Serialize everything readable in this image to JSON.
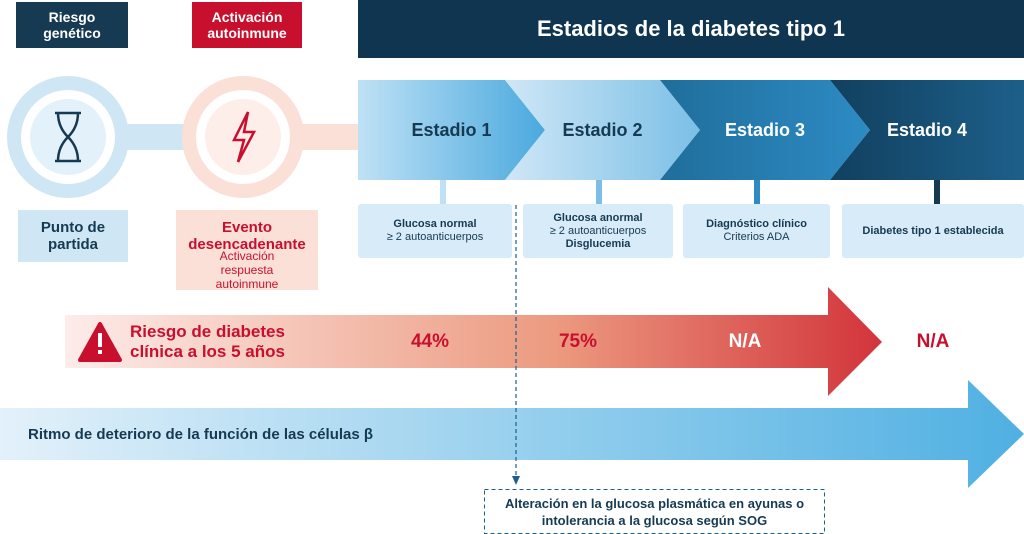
{
  "header": {
    "title": "Estadios de la diabetes tipo 1"
  },
  "pre_stages": [
    {
      "label": "Riesgo genético",
      "caption_title": "Punto de partida"
    },
    {
      "label": "Activación autoinmune",
      "caption_title": "Evento desencadenante",
      "caption_text": "Activación respuesta autoinmune"
    }
  ],
  "stages": [
    {
      "name": "Estadio 1",
      "details": [
        {
          "text": "Glucosa normal",
          "bold": true
        },
        {
          "text": "≥ 2 autoanticuerpos",
          "bold": false
        }
      ]
    },
    {
      "name": "Estadio 2",
      "details": [
        {
          "text": "Glucosa anormal",
          "bold": true
        },
        {
          "text": "≥ 2 autoanticuerpos",
          "bold": false
        },
        {
          "text": "Disglucemia",
          "bold": true
        }
      ]
    },
    {
      "name": "Estadio 3",
      "details": [
        {
          "text": "Diagnóstico clínico",
          "bold": true
        },
        {
          "text": "Criterios ADA",
          "bold": false
        }
      ]
    },
    {
      "name": "Estadio 4",
      "details": [
        {
          "text": "Diabetes tipo 1 establecida",
          "bold": true
        }
      ]
    }
  ],
  "risk": {
    "label": "Riesgo de diabetes clínica a los 5 años",
    "values": [
      "44%",
      "75%",
      "N/A",
      "N/A"
    ]
  },
  "decline": {
    "label": "Ritmo de deterioro de la función de las células β"
  },
  "note": {
    "text": "Alteración en la glucosa plasmática en ayunas o intolerancia a la glucosa según SOG"
  }
}
